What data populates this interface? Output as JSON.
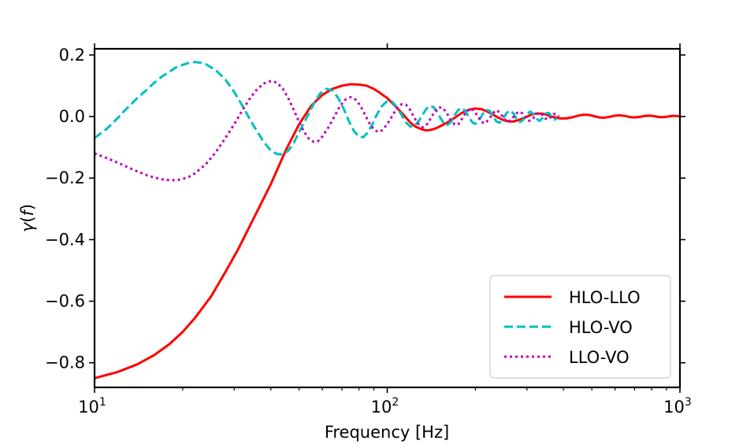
{
  "chart_data": {
    "type": "line",
    "xscale": "log",
    "xlim": [
      10,
      1000
    ],
    "ylim": [
      -0.88,
      0.22
    ],
    "xlabel": "Frequency [Hz]",
    "ylabel_symbol": "γ",
    "ylabel_arg": "f",
    "xticks": [
      {
        "value": 10,
        "base": "10",
        "exp": "1"
      },
      {
        "value": 100,
        "base": "10",
        "exp": "2"
      },
      {
        "value": 1000,
        "base": "10",
        "exp": "3"
      }
    ],
    "yticks": [
      {
        "value": 0.2,
        "label": "0.2"
      },
      {
        "value": 0.0,
        "label": "0.0"
      },
      {
        "value": -0.2,
        "label": "−0.2"
      },
      {
        "value": -0.4,
        "label": "−0.4"
      },
      {
        "value": -0.6,
        "label": "−0.6"
      },
      {
        "value": -0.8,
        "label": "−0.8"
      }
    ],
    "legend_position": "lower-right",
    "series": [
      {
        "name": "HLO-LLO",
        "color": "#ff0000",
        "style": "solid",
        "points": [
          [
            10,
            -0.85
          ],
          [
            12,
            -0.83
          ],
          [
            14,
            -0.805
          ],
          [
            16,
            -0.775
          ],
          [
            18,
            -0.74
          ],
          [
            20,
            -0.7
          ],
          [
            22,
            -0.655
          ],
          [
            25,
            -0.585
          ],
          [
            28,
            -0.505
          ],
          [
            31,
            -0.43
          ],
          [
            35,
            -0.33
          ],
          [
            40,
            -0.22
          ],
          [
            45,
            -0.11
          ],
          [
            50,
            -0.025
          ],
          [
            55,
            0.035
          ],
          [
            60,
            0.07
          ],
          [
            65,
            0.09
          ],
          [
            70,
            0.1
          ],
          [
            75,
            0.105
          ],
          [
            80,
            0.104
          ],
          [
            85,
            0.1
          ],
          [
            90,
            0.09
          ],
          [
            95,
            0.075
          ],
          [
            100,
            0.06
          ],
          [
            105,
            0.04
          ],
          [
            110,
            0.02
          ],
          [
            115,
            0.0
          ],
          [
            120,
            -0.02
          ],
          [
            125,
            -0.033
          ],
          [
            130,
            -0.04
          ],
          [
            135,
            -0.045
          ],
          [
            140,
            -0.044
          ],
          [
            145,
            -0.04
          ],
          [
            150,
            -0.034
          ],
          [
            160,
            -0.02
          ],
          [
            170,
            -0.004
          ],
          [
            180,
            0.012
          ],
          [
            190,
            0.022
          ],
          [
            200,
            0.026
          ],
          [
            210,
            0.024
          ],
          [
            220,
            0.016
          ],
          [
            230,
            0.006
          ],
          [
            240,
            -0.004
          ],
          [
            250,
            -0.012
          ],
          [
            260,
            -0.016
          ],
          [
            270,
            -0.016
          ],
          [
            280,
            -0.012
          ],
          [
            295,
            -0.004
          ],
          [
            310,
            0.006
          ],
          [
            325,
            0.01
          ],
          [
            340,
            0.009
          ],
          [
            355,
            0.004
          ],
          [
            370,
            -0.002
          ],
          [
            390,
            -0.006
          ],
          [
            410,
            -0.006
          ],
          [
            430,
            -0.002
          ],
          [
            450,
            0.003
          ],
          [
            470,
            0.006
          ],
          [
            490,
            0.005
          ],
          [
            510,
            0.001
          ],
          [
            530,
            -0.003
          ],
          [
            550,
            -0.004
          ],
          [
            575,
            -0.001
          ],
          [
            600,
            0.003
          ],
          [
            625,
            0.004
          ],
          [
            650,
            0.002
          ],
          [
            675,
            -0.002
          ],
          [
            700,
            -0.003
          ],
          [
            730,
            -0.001
          ],
          [
            760,
            0.002
          ],
          [
            790,
            0.003
          ],
          [
            820,
            0.001
          ],
          [
            850,
            -0.002
          ],
          [
            880,
            -0.002
          ],
          [
            910,
            0.0
          ],
          [
            940,
            0.002
          ],
          [
            970,
            0.002
          ],
          [
            1000,
            0.0
          ]
        ]
      },
      {
        "name": "HLO-VO",
        "color": "#00bfbf",
        "style": "dashed",
        "points": [
          [
            10,
            -0.07
          ],
          [
            11,
            -0.04
          ],
          [
            12,
            -0.005
          ],
          [
            13,
            0.03
          ],
          [
            14,
            0.06
          ],
          [
            15,
            0.085
          ],
          [
            16,
            0.11
          ],
          [
            17,
            0.13
          ],
          [
            18,
            0.145
          ],
          [
            19,
            0.16
          ],
          [
            20,
            0.168
          ],
          [
            21,
            0.174
          ],
          [
            22,
            0.177
          ],
          [
            23,
            0.175
          ],
          [
            24,
            0.17
          ],
          [
            26,
            0.15
          ],
          [
            28,
            0.12
          ],
          [
            30,
            0.08
          ],
          [
            32,
            0.035
          ],
          [
            34,
            -0.01
          ],
          [
            36,
            -0.05
          ],
          [
            38,
            -0.085
          ],
          [
            40,
            -0.11
          ],
          [
            42,
            -0.122
          ],
          [
            44,
            -0.123
          ],
          [
            46,
            -0.11
          ],
          [
            48,
            -0.085
          ],
          [
            50,
            -0.05
          ],
          [
            53,
            -0.005
          ],
          [
            56,
            0.04
          ],
          [
            59,
            0.075
          ],
          [
            62,
            0.09
          ],
          [
            65,
            0.085
          ],
          [
            68,
            0.06
          ],
          [
            71,
            0.025
          ],
          [
            74,
            -0.015
          ],
          [
            77,
            -0.048
          ],
          [
            80,
            -0.065
          ],
          [
            83,
            -0.067
          ],
          [
            86,
            -0.05
          ],
          [
            89,
            -0.025
          ],
          [
            92,
            0.005
          ],
          [
            96,
            0.035
          ],
          [
            100,
            0.05
          ],
          [
            104,
            0.048
          ],
          [
            108,
            0.03
          ],
          [
            112,
            0.005
          ],
          [
            116,
            -0.02
          ],
          [
            120,
            -0.033
          ],
          [
            124,
            -0.03
          ],
          [
            128,
            -0.015
          ],
          [
            132,
            0.005
          ],
          [
            136,
            0.025
          ],
          [
            140,
            0.035
          ],
          [
            144,
            0.03
          ],
          [
            148,
            0.015
          ],
          [
            152,
            -0.005
          ],
          [
            156,
            -0.022
          ],
          [
            160,
            -0.028
          ],
          [
            165,
            -0.018
          ],
          [
            170,
            0.005
          ],
          [
            175,
            0.022
          ],
          [
            180,
            0.028
          ],
          [
            185,
            0.018
          ],
          [
            190,
            -0.002
          ],
          [
            195,
            -0.018
          ],
          [
            200,
            -0.024
          ],
          [
            206,
            -0.012
          ],
          [
            212,
            0.008
          ],
          [
            218,
            0.022
          ],
          [
            224,
            0.018
          ],
          [
            230,
            0.0
          ],
          [
            236,
            -0.016
          ],
          [
            242,
            -0.02
          ],
          [
            249,
            -0.006
          ],
          [
            256,
            0.012
          ],
          [
            263,
            0.02
          ],
          [
            270,
            0.01
          ],
          [
            277,
            -0.008
          ],
          [
            284,
            -0.018
          ],
          [
            292,
            -0.01
          ],
          [
            300,
            0.008
          ],
          [
            308,
            0.016
          ],
          [
            316,
            0.008
          ],
          [
            324,
            -0.008
          ],
          [
            332,
            -0.014
          ],
          [
            340,
            -0.004
          ],
          [
            348,
            0.01
          ],
          [
            356,
            0.012
          ],
          [
            364,
            0.0
          ],
          [
            372,
            -0.01
          ],
          [
            380,
            -0.006
          ]
        ]
      },
      {
        "name": "LLO-VO",
        "color": "#bf00bf",
        "style": "dotted",
        "points": [
          [
            10,
            -0.12
          ],
          [
            11,
            -0.135
          ],
          [
            12,
            -0.15
          ],
          [
            13,
            -0.165
          ],
          [
            14,
            -0.178
          ],
          [
            15,
            -0.19
          ],
          [
            16,
            -0.198
          ],
          [
            17,
            -0.204
          ],
          [
            18,
            -0.207
          ],
          [
            19,
            -0.207
          ],
          [
            20,
            -0.203
          ],
          [
            21,
            -0.196
          ],
          [
            22,
            -0.185
          ],
          [
            24,
            -0.155
          ],
          [
            26,
            -0.115
          ],
          [
            28,
            -0.07
          ],
          [
            30,
            -0.025
          ],
          [
            32,
            0.02
          ],
          [
            34,
            0.06
          ],
          [
            36,
            0.09
          ],
          [
            38,
            0.108
          ],
          [
            40,
            0.115
          ],
          [
            42,
            0.11
          ],
          [
            44,
            0.09
          ],
          [
            46,
            0.058
          ],
          [
            48,
            0.02
          ],
          [
            50,
            -0.018
          ],
          [
            52,
            -0.05
          ],
          [
            54,
            -0.072
          ],
          [
            56,
            -0.082
          ],
          [
            58,
            -0.08
          ],
          [
            60,
            -0.065
          ],
          [
            63,
            -0.035
          ],
          [
            66,
            0.0
          ],
          [
            69,
            0.035
          ],
          [
            72,
            0.055
          ],
          [
            75,
            0.063
          ],
          [
            78,
            0.055
          ],
          [
            81,
            0.035
          ],
          [
            84,
            0.005
          ],
          [
            87,
            -0.022
          ],
          [
            90,
            -0.042
          ],
          [
            93,
            -0.05
          ],
          [
            96,
            -0.045
          ],
          [
            100,
            -0.025
          ],
          [
            104,
            0.002
          ],
          [
            108,
            0.028
          ],
          [
            112,
            0.04
          ],
          [
            116,
            0.038
          ],
          [
            120,
            0.02
          ],
          [
            124,
            -0.005
          ],
          [
            128,
            -0.025
          ],
          [
            132,
            -0.035
          ],
          [
            136,
            -0.028
          ],
          [
            140,
            -0.01
          ],
          [
            145,
            0.015
          ],
          [
            150,
            0.03
          ],
          [
            155,
            0.028
          ],
          [
            160,
            0.01
          ],
          [
            165,
            -0.012
          ],
          [
            170,
            -0.026
          ],
          [
            175,
            -0.025
          ],
          [
            180,
            -0.008
          ],
          [
            186,
            0.014
          ],
          [
            192,
            0.026
          ],
          [
            198,
            0.02
          ],
          [
            204,
            0.0
          ],
          [
            210,
            -0.018
          ],
          [
            216,
            -0.022
          ],
          [
            223,
            -0.008
          ],
          [
            230,
            0.012
          ],
          [
            237,
            0.02
          ],
          [
            244,
            0.01
          ],
          [
            251,
            -0.008
          ],
          [
            258,
            -0.018
          ],
          [
            266,
            -0.01
          ],
          [
            274,
            0.008
          ],
          [
            282,
            0.016
          ],
          [
            290,
            0.01
          ],
          [
            298,
            -0.006
          ],
          [
            306,
            -0.014
          ],
          [
            314,
            -0.008
          ],
          [
            322,
            0.006
          ],
          [
            330,
            0.012
          ],
          [
            338,
            0.006
          ],
          [
            346,
            -0.006
          ],
          [
            354,
            -0.01
          ],
          [
            362,
            -0.002
          ],
          [
            370,
            0.008
          ],
          [
            378,
            0.008
          ],
          [
            386,
            0.0
          ]
        ]
      }
    ]
  }
}
